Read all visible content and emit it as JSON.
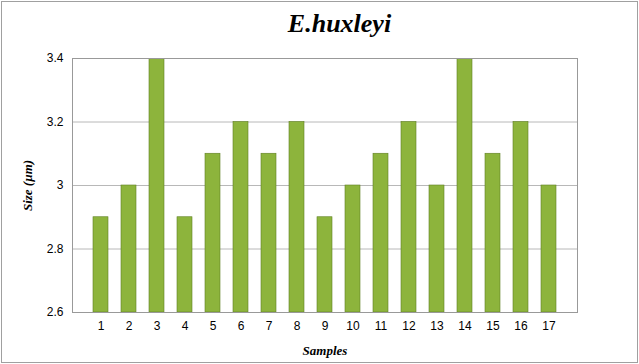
{
  "chart_data": {
    "type": "bar",
    "title": "E.huxleyi",
    "categories": [
      "1",
      "2",
      "3",
      "4",
      "5",
      "6",
      "7",
      "8",
      "9",
      "10",
      "11",
      "12",
      "13",
      "14",
      "15",
      "16",
      "17"
    ],
    "values": [
      2.9,
      3.0,
      3.4,
      2.9,
      3.1,
      3.2,
      3.1,
      3.2,
      2.9,
      3.0,
      3.1,
      3.2,
      3.0,
      3.4,
      3.1,
      3.2,
      3.0
    ],
    "color": "#8db43c",
    "x_label": "Samples",
    "y_label": "Size (µm)",
    "ylim": [
      2.6,
      3.4
    ],
    "yticks": [
      2.6,
      2.8,
      3,
      3.2,
      3.4
    ],
    "grid": true
  }
}
